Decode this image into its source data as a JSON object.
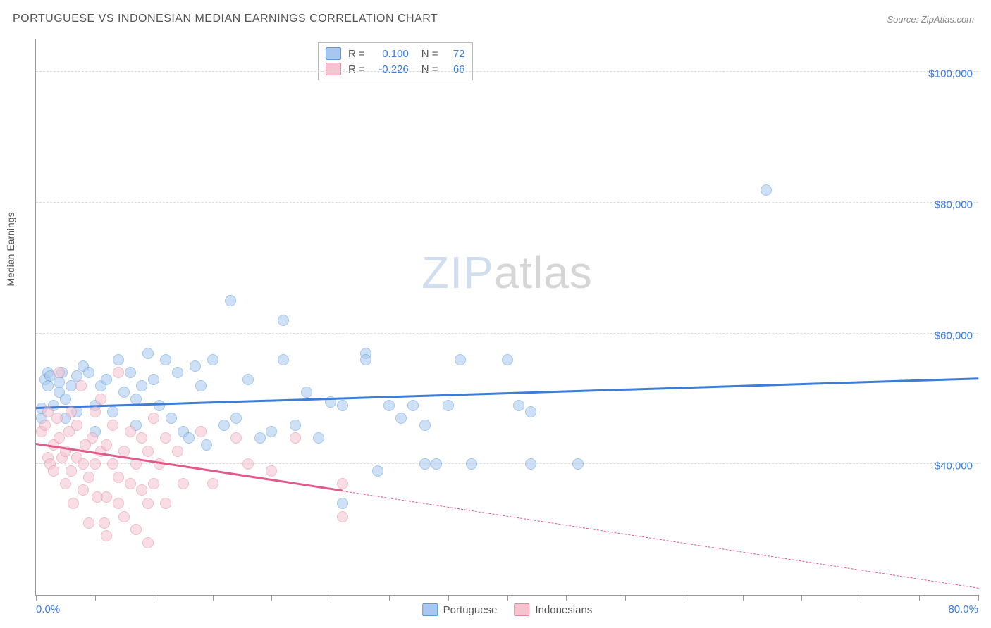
{
  "header": {
    "title": "PORTUGUESE VS INDONESIAN MEDIAN EARNINGS CORRELATION CHART",
    "source_label": "Source: ZipAtlas.com"
  },
  "chart": {
    "type": "scatter",
    "yaxis_title": "Median Earnings",
    "xlim": [
      0,
      80
    ],
    "ylim": [
      20000,
      105000
    ],
    "x_tick_positions": [
      0,
      5,
      10,
      15,
      20,
      25,
      30,
      35,
      40,
      45,
      50,
      55,
      60,
      65,
      70,
      75,
      80
    ],
    "x_min_label": "0.0%",
    "x_max_label": "80.0%",
    "y_gridlines": [
      40000,
      60000,
      80000,
      100000
    ],
    "y_tick_labels": [
      "$40,000",
      "$60,000",
      "$80,000",
      "$100,000"
    ],
    "background_color": "#ffffff",
    "grid_color": "#dddddd",
    "axis_color": "#999999",
    "tick_label_color": "#3b7dd8",
    "marker_radius": 8,
    "marker_opacity": 0.55,
    "watermark_text_a": "ZIP",
    "watermark_text_b": "atlas",
    "series": [
      {
        "name": "Portuguese",
        "fill": "#a7c7f0",
        "stroke": "#5a9bd8",
        "line_color": "#3b7dd8",
        "r_value": "0.100",
        "n_value": "72",
        "trend": {
          "x1": 0,
          "y1": 48500,
          "x2": 80,
          "y2": 53000,
          "solid_until_x": 80
        },
        "points": [
          [
            0.5,
            47000
          ],
          [
            0.5,
            48500
          ],
          [
            0.8,
            53000
          ],
          [
            1.0,
            54000
          ],
          [
            1.2,
            53500
          ],
          [
            1.0,
            52000
          ],
          [
            1.5,
            49000
          ],
          [
            2.0,
            52500
          ],
          [
            2.0,
            51000
          ],
          [
            2.2,
            54000
          ],
          [
            2.5,
            50000
          ],
          [
            2.5,
            47000
          ],
          [
            3.0,
            52000
          ],
          [
            3.5,
            53500
          ],
          [
            3.5,
            48000
          ],
          [
            4.0,
            55000
          ],
          [
            4.5,
            54000
          ],
          [
            5.0,
            49000
          ],
          [
            5.0,
            45000
          ],
          [
            5.5,
            52000
          ],
          [
            6.0,
            53000
          ],
          [
            6.5,
            48000
          ],
          [
            7.0,
            56000
          ],
          [
            7.5,
            51000
          ],
          [
            8.0,
            54000
          ],
          [
            8.5,
            50000
          ],
          [
            8.5,
            46000
          ],
          [
            9.0,
            52000
          ],
          [
            9.5,
            57000
          ],
          [
            10,
            53000
          ],
          [
            10.5,
            49000
          ],
          [
            11,
            56000
          ],
          [
            11.5,
            47000
          ],
          [
            12,
            54000
          ],
          [
            12.5,
            45000
          ],
          [
            13,
            44000
          ],
          [
            13.5,
            55000
          ],
          [
            14,
            52000
          ],
          [
            14.5,
            43000
          ],
          [
            15,
            56000
          ],
          [
            16,
            46000
          ],
          [
            16.5,
            65000
          ],
          [
            17,
            47000
          ],
          [
            18,
            53000
          ],
          [
            19,
            44000
          ],
          [
            20,
            45000
          ],
          [
            21,
            56000
          ],
          [
            21,
            62000
          ],
          [
            22,
            46000
          ],
          [
            23,
            51000
          ],
          [
            24,
            44000
          ],
          [
            25,
            49500
          ],
          [
            26,
            49000
          ],
          [
            26,
            34000
          ],
          [
            28,
            57000
          ],
          [
            28,
            56000
          ],
          [
            29,
            39000
          ],
          [
            30,
            49000
          ],
          [
            31,
            47000
          ],
          [
            32,
            49000
          ],
          [
            33,
            46000
          ],
          [
            33,
            40000
          ],
          [
            34,
            40000
          ],
          [
            35,
            49000
          ],
          [
            36,
            56000
          ],
          [
            37,
            40000
          ],
          [
            40,
            56000
          ],
          [
            41,
            49000
          ],
          [
            42,
            48000
          ],
          [
            42,
            40000
          ],
          [
            46,
            40000
          ],
          [
            62,
            82000
          ]
        ]
      },
      {
        "name": "Indonesians",
        "fill": "#f5c2cf",
        "stroke": "#e38aa3",
        "line_color": "#e05a8a",
        "r_value": "-0.226",
        "n_value": "66",
        "trend": {
          "x1": 0,
          "y1": 43000,
          "x2": 80,
          "y2": 21000,
          "solid_until_x": 26
        },
        "points": [
          [
            0.5,
            45000
          ],
          [
            0.8,
            46000
          ],
          [
            1.0,
            48000
          ],
          [
            1.0,
            41000
          ],
          [
            1.2,
            40000
          ],
          [
            1.5,
            43000
          ],
          [
            1.5,
            39000
          ],
          [
            1.8,
            47000
          ],
          [
            2.0,
            44000
          ],
          [
            2.0,
            54000
          ],
          [
            2.2,
            41000
          ],
          [
            2.5,
            37000
          ],
          [
            2.5,
            42000
          ],
          [
            2.8,
            45000
          ],
          [
            3.0,
            48000
          ],
          [
            3.0,
            39000
          ],
          [
            3.2,
            34000
          ],
          [
            3.5,
            41000
          ],
          [
            3.5,
            46000
          ],
          [
            3.8,
            52000
          ],
          [
            4.0,
            40000
          ],
          [
            4.0,
            36000
          ],
          [
            4.2,
            43000
          ],
          [
            4.5,
            31000
          ],
          [
            4.5,
            38000
          ],
          [
            4.8,
            44000
          ],
          [
            5.0,
            48000
          ],
          [
            5.0,
            40000
          ],
          [
            5.2,
            35000
          ],
          [
            5.5,
            42000
          ],
          [
            5.5,
            50000
          ],
          [
            5.8,
            31000
          ],
          [
            6.0,
            43000
          ],
          [
            6.0,
            35000
          ],
          [
            6.0,
            29000
          ],
          [
            6.5,
            40000
          ],
          [
            6.5,
            46000
          ],
          [
            7.0,
            38000
          ],
          [
            7.0,
            34000
          ],
          [
            7.0,
            54000
          ],
          [
            7.5,
            42000
          ],
          [
            7.5,
            32000
          ],
          [
            8.0,
            45000
          ],
          [
            8.0,
            37000
          ],
          [
            8.5,
            40000
          ],
          [
            8.5,
            30000
          ],
          [
            9.0,
            44000
          ],
          [
            9.0,
            36000
          ],
          [
            9.5,
            42000
          ],
          [
            9.5,
            34000
          ],
          [
            9.5,
            28000
          ],
          [
            10,
            47000
          ],
          [
            10,
            37000
          ],
          [
            10.5,
            40000
          ],
          [
            11,
            44000
          ],
          [
            11,
            34000
          ],
          [
            12,
            42000
          ],
          [
            12.5,
            37000
          ],
          [
            14,
            45000
          ],
          [
            15,
            37000
          ],
          [
            17,
            44000
          ],
          [
            18,
            40000
          ],
          [
            20,
            39000
          ],
          [
            22,
            44000
          ],
          [
            26,
            37000
          ],
          [
            26,
            32000
          ]
        ]
      }
    ]
  },
  "legend": {
    "r_label": "R =",
    "n_label": "N ="
  }
}
